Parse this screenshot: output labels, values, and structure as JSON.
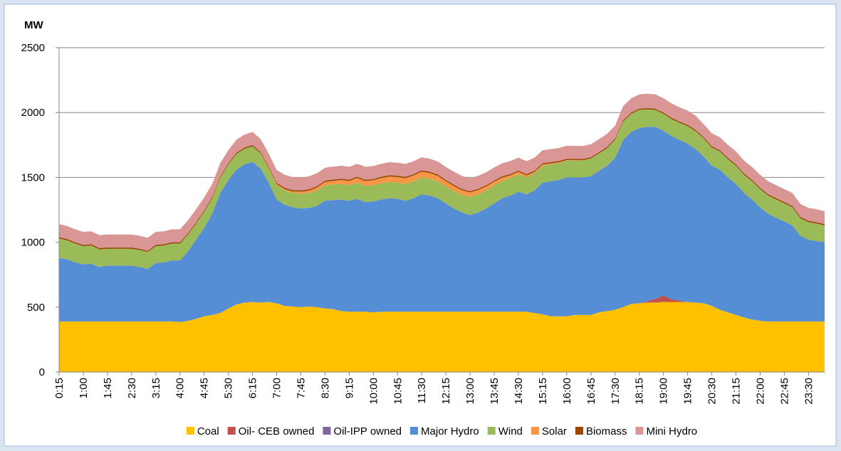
{
  "chart_data": {
    "type": "stacked-area",
    "y_label": "MW",
    "ylim": [
      0,
      2500
    ],
    "yticks": [
      0,
      500,
      1000,
      1500,
      2000,
      2500
    ],
    "grid": true,
    "legend": "bottom",
    "categories": [
      "0:15",
      null,
      null,
      "1:00",
      null,
      null,
      "1:45",
      null,
      null,
      "2:30",
      null,
      null,
      "3:15",
      null,
      null,
      "4:00",
      null,
      null,
      "4:45",
      null,
      null,
      "5:30",
      null,
      null,
      "6:15",
      null,
      null,
      "7:00",
      null,
      null,
      "7:45",
      null,
      null,
      "8:30",
      null,
      null,
      "9:15",
      null,
      null,
      "10:00",
      null,
      null,
      "10:45",
      null,
      null,
      "11:30",
      null,
      null,
      "12:15",
      null,
      null,
      "13:00",
      null,
      null,
      "13:45",
      null,
      null,
      "14:30",
      null,
      null,
      "15:15",
      null,
      null,
      "16:00",
      null,
      null,
      "16:45",
      null,
      null,
      "17:30",
      null,
      null,
      "18:15",
      null,
      null,
      "19:00",
      null,
      null,
      "19:45",
      null,
      null,
      "20:30",
      null,
      null,
      "21:15",
      null,
      null,
      "22:00",
      null,
      null,
      "22:45",
      null,
      null,
      "23:30",
      null,
      null
    ],
    "series": [
      {
        "name": "Coal",
        "color": "#ffc000",
        "values": [
          390,
          390,
          390,
          390,
          390,
          390,
          390,
          390,
          390,
          390,
          390,
          390,
          390,
          390,
          390,
          385,
          395,
          410,
          430,
          440,
          455,
          490,
          520,
          535,
          540,
          535,
          540,
          530,
          510,
          505,
          500,
          505,
          500,
          490,
          485,
          470,
          465,
          465,
          465,
          460,
          465,
          465,
          465,
          465,
          465,
          465,
          465,
          465,
          465,
          465,
          465,
          465,
          465,
          465,
          465,
          465,
          465,
          465,
          465,
          455,
          445,
          430,
          430,
          430,
          440,
          440,
          440,
          460,
          470,
          480,
          500,
          525,
          530,
          535,
          535,
          540,
          540,
          540,
          540,
          535,
          530,
          510,
          480,
          460,
          440,
          420,
          405,
          395,
          390,
          390,
          390,
          390,
          390,
          390,
          390,
          390
        ]
      },
      {
        "name": "Oil- CEB owned",
        "color": "#c0504d",
        "values": [
          0,
          0,
          0,
          0,
          0,
          0,
          0,
          0,
          0,
          0,
          0,
          0,
          0,
          0,
          0,
          0,
          0,
          0,
          0,
          0,
          0,
          0,
          0,
          0,
          0,
          0,
          0,
          0,
          0,
          0,
          0,
          0,
          0,
          0,
          0,
          0,
          0,
          0,
          0,
          0,
          0,
          0,
          0,
          0,
          0,
          0,
          0,
          0,
          0,
          0,
          0,
          0,
          0,
          0,
          0,
          0,
          0,
          0,
          0,
          0,
          0,
          0,
          0,
          0,
          0,
          0,
          0,
          0,
          0,
          0,
          0,
          0,
          0,
          10,
          30,
          50,
          20,
          10,
          0,
          0,
          0,
          0,
          0,
          0,
          0,
          0,
          0,
          0,
          0,
          0,
          0,
          0,
          0,
          0,
          0,
          0
        ]
      },
      {
        "name": "Oil-IPP owned",
        "color": "#8064a2",
        "values": [
          0,
          0,
          0,
          0,
          0,
          0,
          0,
          0,
          0,
          0,
          0,
          0,
          0,
          0,
          0,
          0,
          0,
          0,
          0,
          0,
          0,
          0,
          0,
          0,
          0,
          0,
          0,
          0,
          0,
          0,
          0,
          0,
          0,
          0,
          0,
          0,
          0,
          0,
          0,
          0,
          0,
          0,
          0,
          0,
          0,
          0,
          0,
          0,
          0,
          0,
          0,
          0,
          0,
          0,
          0,
          0,
          0,
          0,
          0,
          0,
          0,
          0,
          0,
          0,
          0,
          0,
          0,
          0,
          0,
          0,
          0,
          0,
          0,
          0,
          0,
          0,
          0,
          0,
          0,
          0,
          0,
          0,
          0,
          0,
          0,
          0,
          0,
          0,
          0,
          0,
          0,
          0,
          0,
          0,
          0,
          0
        ]
      },
      {
        "name": "Major Hydro",
        "color": "#558ed5",
        "values": [
          490,
          480,
          455,
          440,
          445,
          420,
          430,
          430,
          430,
          430,
          420,
          405,
          450,
          455,
          470,
          475,
          535,
          610,
          680,
          780,
          925,
          990,
          1040,
          1065,
          1080,
          1035,
          920,
          800,
          780,
          765,
          760,
          760,
          780,
          830,
          840,
          860,
          855,
          870,
          845,
          855,
          865,
          875,
          870,
          855,
          875,
          905,
          895,
          875,
          835,
          795,
          765,
          745,
          765,
          795,
          835,
          875,
          895,
          925,
          905,
          945,
          1015,
          1040,
          1050,
          1070,
          1060,
          1060,
          1070,
          1090,
          1120,
          1170,
          1290,
          1325,
          1350,
          1345,
          1325,
          1270,
          1260,
          1240,
          1220,
          1185,
          1130,
          1080,
          1080,
          1040,
          1010,
          960,
          925,
          875,
          830,
          800,
          770,
          740,
          660,
          630,
          620,
          610
        ]
      },
      {
        "name": "Wind",
        "color": "#9bbb59",
        "values": [
          150,
          145,
          145,
          140,
          140,
          135,
          130,
          130,
          130,
          130,
          130,
          130,
          130,
          130,
          130,
          130,
          130,
          125,
          125,
          120,
          120,
          120,
          120,
          120,
          120,
          115,
          110,
          110,
          110,
          110,
          115,
          115,
          120,
          120,
          120,
          120,
          120,
          125,
          125,
          125,
          125,
          125,
          125,
          130,
          130,
          130,
          130,
          130,
          130,
          135,
          135,
          140,
          140,
          140,
          140,
          135,
          135,
          135,
          130,
          130,
          130,
          130,
          130,
          130,
          130,
          130,
          135,
          135,
          135,
          140,
          140,
          140,
          140,
          135,
          130,
          130,
          130,
          130,
          135,
          135,
          140,
          140,
          140,
          140,
          140,
          140,
          140,
          140,
          140,
          140,
          140,
          140,
          135,
          135,
          135,
          130
        ]
      },
      {
        "name": "Solar",
        "color": "#f79646",
        "values": [
          0,
          0,
          0,
          0,
          0,
          0,
          0,
          0,
          0,
          0,
          0,
          0,
          0,
          0,
          0,
          0,
          0,
          0,
          0,
          0,
          0,
          0,
          0,
          0,
          0,
          2,
          5,
          8,
          10,
          12,
          15,
          18,
          22,
          25,
          28,
          30,
          32,
          35,
          37,
          38,
          40,
          42,
          43,
          44,
          45,
          45,
          44,
          42,
          40,
          38,
          36,
          34,
          32,
          30,
          27,
          24,
          21,
          18,
          15,
          12,
          10,
          8,
          6,
          4,
          3,
          2,
          1,
          0,
          0,
          0,
          0,
          0,
          0,
          0,
          0,
          0,
          0,
          0,
          0,
          0,
          0,
          0,
          0,
          0,
          0,
          0,
          0,
          0,
          0,
          0,
          0,
          0,
          0,
          0,
          0,
          0
        ]
      },
      {
        "name": "Biomass",
        "color": "#984807",
        "values": [
          10,
          10,
          10,
          10,
          10,
          10,
          10,
          10,
          10,
          10,
          10,
          10,
          10,
          10,
          10,
          10,
          10,
          10,
          10,
          10,
          10,
          10,
          10,
          10,
          10,
          10,
          10,
          10,
          10,
          10,
          10,
          10,
          10,
          10,
          10,
          10,
          10,
          10,
          10,
          10,
          10,
          10,
          10,
          10,
          10,
          10,
          10,
          10,
          10,
          10,
          10,
          10,
          10,
          10,
          10,
          10,
          10,
          10,
          10,
          10,
          10,
          10,
          10,
          10,
          10,
          10,
          10,
          10,
          10,
          10,
          10,
          10,
          10,
          10,
          10,
          10,
          10,
          10,
          10,
          10,
          10,
          10,
          10,
          10,
          10,
          10,
          10,
          10,
          10,
          10,
          10,
          10,
          10,
          10,
          10,
          10
        ]
      },
      {
        "name": "Mini Hydro",
        "color": "#d99694",
        "values": [
          100,
          100,
          100,
          100,
          100,
          100,
          100,
          100,
          100,
          100,
          100,
          100,
          100,
          100,
          100,
          100,
          100,
          100,
          100,
          100,
          100,
          100,
          100,
          100,
          100,
          100,
          100,
          100,
          100,
          100,
          100,
          100,
          100,
          100,
          100,
          100,
          100,
          100,
          100,
          100,
          100,
          100,
          100,
          100,
          100,
          100,
          100,
          100,
          100,
          100,
          100,
          100,
          100,
          100,
          100,
          100,
          100,
          100,
          100,
          100,
          100,
          100,
          100,
          100,
          100,
          100,
          100,
          100,
          100,
          100,
          110,
          110,
          110,
          110,
          110,
          110,
          110,
          110,
          110,
          110,
          100,
          100,
          100,
          100,
          100,
          100,
          100,
          100,
          100,
          100,
          100,
          100,
          100,
          100,
          100,
          100
        ]
      }
    ]
  }
}
